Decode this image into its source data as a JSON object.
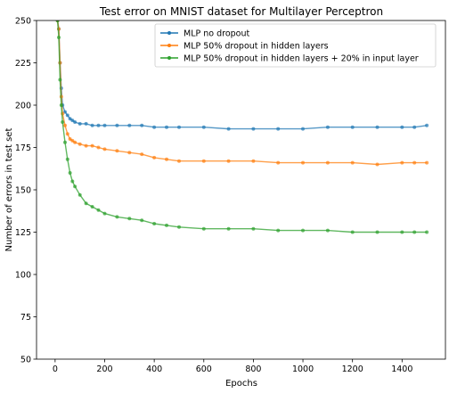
{
  "chart_data": {
    "type": "line",
    "title": "Test error on MNIST dataset for Multilayer Perceptron",
    "xlabel": "Epochs",
    "ylabel": "Number of errors in test set",
    "xlim": [
      -75,
      1575
    ],
    "ylim": [
      50,
      250
    ],
    "xticks": [
      0,
      200,
      400,
      600,
      800,
      1000,
      1200,
      1400
    ],
    "yticks": [
      50,
      75,
      100,
      125,
      150,
      175,
      200,
      225,
      250
    ],
    "grid": false,
    "legend_position": "top-right",
    "x": [
      10,
      15,
      20,
      25,
      30,
      40,
      50,
      60,
      70,
      80,
      100,
      125,
      150,
      175,
      200,
      250,
      300,
      350,
      400,
      450,
      500,
      600,
      700,
      800,
      900,
      1000,
      1100,
      1200,
      1300,
      1400,
      1450,
      1500
    ],
    "series": [
      {
        "name": "MLP no dropout",
        "color": "#1f77b4",
        "values": [
          250,
          245,
          225,
          210,
          200,
          196,
          194,
          192,
          191,
          190,
          189,
          189,
          188,
          188,
          188,
          188,
          188,
          188,
          187,
          187,
          187,
          187,
          186,
          186,
          186,
          186,
          187,
          187,
          187,
          187,
          187,
          188
        ]
      },
      {
        "name": "MLP 50% dropout in hidden layers",
        "color": "#ff7f0e",
        "values": [
          250,
          245,
          225,
          205,
          195,
          188,
          183,
          180,
          179,
          178,
          177,
          176,
          176,
          175,
          174,
          173,
          172,
          171,
          169,
          168,
          167,
          167,
          167,
          167,
          166,
          166,
          166,
          166,
          165,
          166,
          166,
          166
        ]
      },
      {
        "name": "MLP 50% dropout in hidden layers + 20% in input layer",
        "color": "#2ca02c",
        "values": [
          250,
          240,
          215,
          200,
          190,
          178,
          168,
          160,
          155,
          152,
          147,
          142,
          140,
          138,
          136,
          134,
          133,
          132,
          130,
          129,
          128,
          127,
          127,
          127,
          126,
          126,
          126,
          125,
          125,
          125,
          125,
          125
        ]
      }
    ]
  }
}
